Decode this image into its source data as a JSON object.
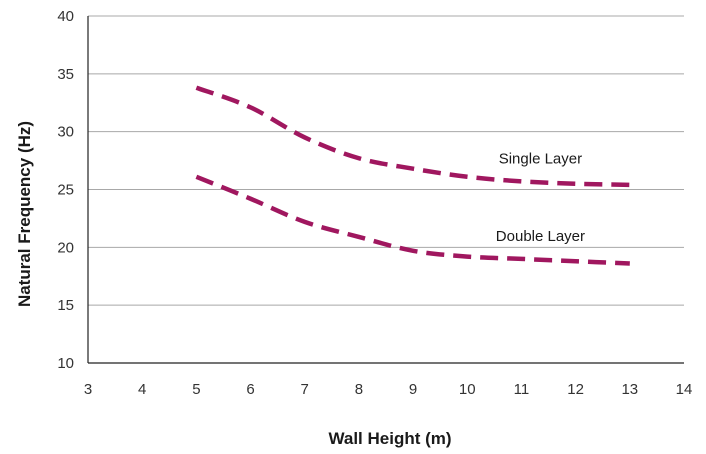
{
  "chart_data": {
    "type": "line",
    "title": "",
    "xlabel": "Wall Height (m)",
    "ylabel": "Natural Frequency (Hz)",
    "xlim": [
      3,
      14
    ],
    "ylim": [
      10,
      40
    ],
    "xticks": [
      3,
      4,
      5,
      6,
      7,
      8,
      9,
      10,
      11,
      12,
      13,
      14
    ],
    "yticks": [
      10,
      15,
      20,
      25,
      30,
      35,
      40
    ],
    "grid": "horizontal",
    "legend": "none",
    "series": [
      {
        "name": "Single Layer",
        "color": "#a0175f",
        "style": "dashed",
        "x": [
          5,
          6,
          7,
          8,
          9,
          10,
          11,
          12,
          13
        ],
        "y": [
          33.8,
          32.1,
          29.5,
          27.7,
          26.8,
          26.1,
          25.7,
          25.5,
          25.4
        ]
      },
      {
        "name": "Double Layer",
        "color": "#a0175f",
        "style": "dashed",
        "x": [
          5,
          6,
          7,
          8,
          9,
          10,
          11,
          12,
          13
        ],
        "y": [
          26.1,
          24.2,
          22.2,
          20.9,
          19.7,
          19.2,
          19.0,
          18.8,
          18.6
        ]
      }
    ]
  }
}
